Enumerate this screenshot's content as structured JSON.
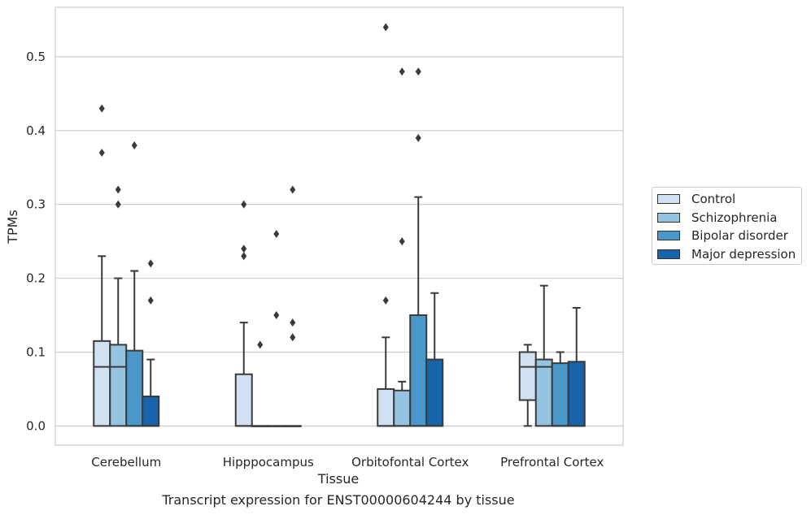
{
  "chart_data": {
    "type": "box",
    "xlabel": "Tissue",
    "ylabel": "TPMs",
    "caption": "Transcript expression for ENST00000604244 by tissue",
    "ylim": [
      -0.026,
      0.567
    ],
    "yticks": [
      0.0,
      0.1,
      0.2,
      0.3,
      0.4,
      0.5
    ],
    "ytick_labels": [
      "0.0",
      "0.1",
      "0.2",
      "0.3",
      "0.4",
      "0.5"
    ],
    "grid": "horizontal",
    "legend_position": "right",
    "categories": [
      "Cerebellum",
      "Hipppocampus",
      "Orbitofontal Cortex",
      "Prefrontal Cortex"
    ],
    "series": [
      {
        "name": "Control",
        "color": "#d0e1f2",
        "boxes": [
          {
            "min": 0.0,
            "q1": 0.0,
            "median": 0.08,
            "q3": 0.115,
            "max": 0.23,
            "outliers": [
              0.37,
              0.43
            ]
          },
          {
            "min": 0.0,
            "q1": 0.0,
            "median": 0.0,
            "q3": 0.07,
            "max": 0.14,
            "outliers": [
              0.23,
              0.24,
              0.3
            ]
          },
          {
            "min": 0.0,
            "q1": 0.0,
            "median": 0.0,
            "q3": 0.05,
            "max": 0.12,
            "outliers": [
              0.17,
              0.54
            ]
          },
          {
            "min": 0.0,
            "q1": 0.035,
            "median": 0.08,
            "q3": 0.1,
            "max": 0.11,
            "outliers": []
          }
        ]
      },
      {
        "name": "Schizophrenia",
        "color": "#94c4df",
        "boxes": [
          {
            "min": 0.0,
            "q1": 0.0,
            "median": 0.08,
            "q3": 0.11,
            "max": 0.2,
            "outliers": [
              0.3,
              0.32
            ]
          },
          {
            "min": 0.0,
            "q1": 0.0,
            "median": 0.0,
            "q3": 0.0,
            "max": 0.0,
            "outliers": [
              0.11
            ]
          },
          {
            "min": 0.0,
            "q1": 0.0,
            "median": 0.0,
            "q3": 0.048,
            "max": 0.06,
            "outliers": [
              0.25,
              0.48
            ]
          },
          {
            "min": 0.0,
            "q1": 0.0,
            "median": 0.08,
            "q3": 0.09,
            "max": 0.19,
            "outliers": []
          }
        ]
      },
      {
        "name": "Bipolar disorder",
        "color": "#4a98c9",
        "boxes": [
          {
            "min": 0.0,
            "q1": 0.0,
            "median": 0.0,
            "q3": 0.102,
            "max": 0.21,
            "outliers": [
              0.38
            ]
          },
          {
            "min": 0.0,
            "q1": 0.0,
            "median": 0.0,
            "q3": 0.0,
            "max": 0.0,
            "outliers": [
              0.15,
              0.26
            ]
          },
          {
            "min": 0.0,
            "q1": 0.0,
            "median": 0.0,
            "q3": 0.15,
            "max": 0.31,
            "outliers": [
              0.39,
              0.48
            ]
          },
          {
            "min": 0.0,
            "q1": 0.0,
            "median": 0.0,
            "q3": 0.085,
            "max": 0.1,
            "outliers": []
          }
        ]
      },
      {
        "name": "Major depression",
        "color": "#1764ab",
        "boxes": [
          {
            "min": 0.0,
            "q1": 0.0,
            "median": 0.0,
            "q3": 0.04,
            "max": 0.09,
            "outliers": [
              0.17,
              0.22
            ]
          },
          {
            "min": 0.0,
            "q1": 0.0,
            "median": 0.0,
            "q3": 0.0,
            "max": 0.0,
            "outliers": [
              0.12,
              0.14,
              0.32
            ]
          },
          {
            "min": 0.0,
            "q1": 0.0,
            "median": 0.0,
            "q3": 0.09,
            "max": 0.18,
            "outliers": []
          },
          {
            "min": 0.0,
            "q1": 0.0,
            "median": 0.0,
            "q3": 0.087,
            "max": 0.16,
            "outliers": []
          }
        ]
      }
    ]
  }
}
